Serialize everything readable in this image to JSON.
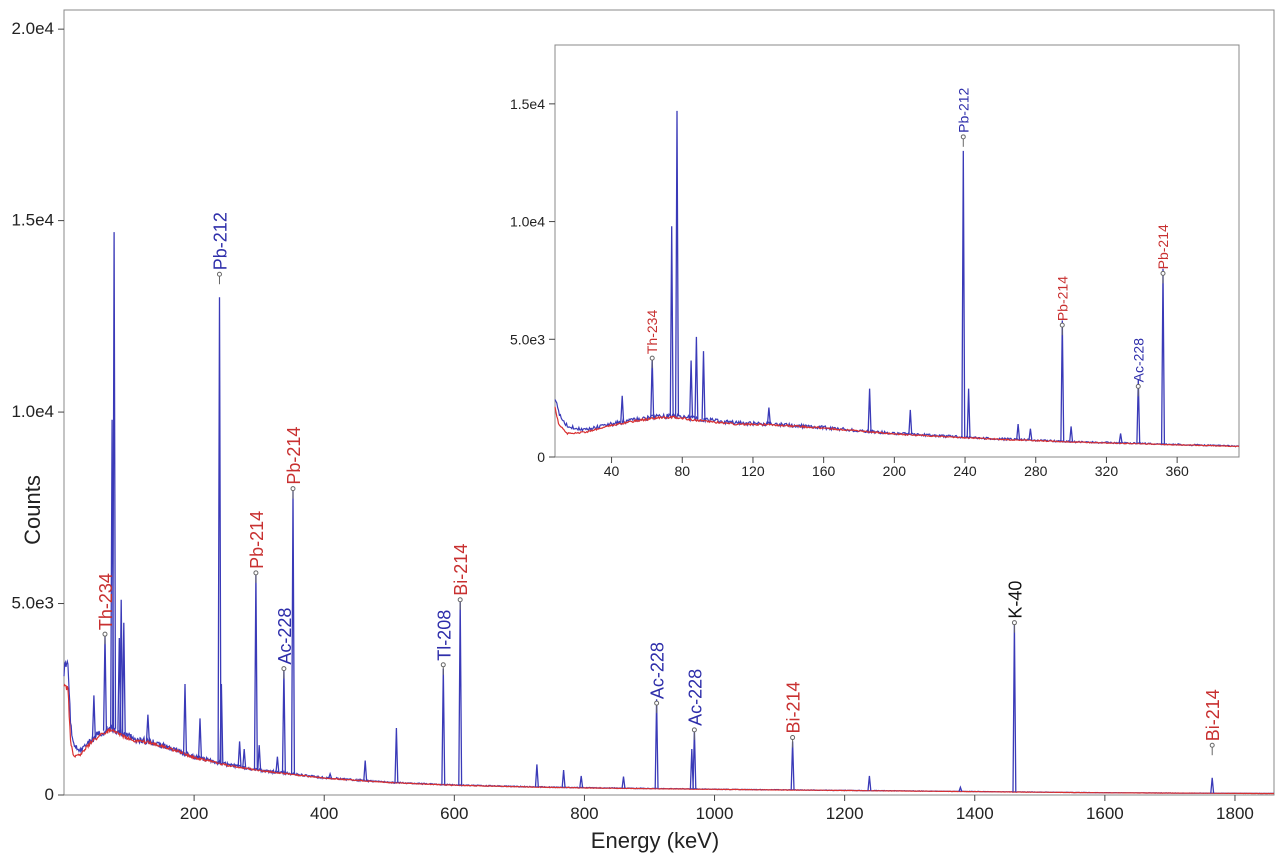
{
  "chart_data": [
    {
      "type": "line",
      "xlabel": "Energy (keV)",
      "ylabel": "Counts",
      "xlim": [
        0,
        1860
      ],
      "ylim": [
        0,
        20500
      ],
      "xticks": [
        200,
        400,
        600,
        800,
        1000,
        1200,
        1400,
        1600,
        1800
      ],
      "xtick_labels": [
        "200",
        "400",
        "600",
        "800",
        "1000",
        "1200",
        "1400",
        "1600",
        "1800"
      ],
      "yticks": [
        0,
        5000,
        10000,
        15000,
        20000
      ],
      "ytick_labels": [
        "0",
        "5.0e3",
        "1.0e4",
        "1.5e4",
        "2.0e4"
      ],
      "grid": false,
      "colors": {
        "spectrum": "#3a3ab8",
        "background": "#d83030",
        "blue_label": "#2e2eaa",
        "red_label": "#c83030",
        "black_label": "#111111"
      },
      "series": [
        {
          "role": "measured",
          "color": "#3a3ab8",
          "baseline": [
            [
              6,
              3300
            ],
            [
              10,
              1900
            ],
            [
              15,
              1300
            ],
            [
              25,
              1150
            ],
            [
              40,
              1400
            ],
            [
              55,
              1600
            ],
            [
              65,
              1700
            ],
            [
              75,
              1750
            ],
            [
              90,
              1600
            ],
            [
              110,
              1450
            ],
            [
              130,
              1400
            ],
            [
              160,
              1250
            ],
            [
              200,
              1000
            ],
            [
              250,
              800
            ],
            [
              300,
              650
            ],
            [
              350,
              550
            ],
            [
              400,
              450
            ],
            [
              500,
              330
            ],
            [
              600,
              260
            ],
            [
              700,
              220
            ],
            [
              800,
              190
            ],
            [
              900,
              170
            ],
            [
              1000,
              150
            ],
            [
              1200,
              120
            ],
            [
              1400,
              90
            ],
            [
              1600,
              60
            ],
            [
              1860,
              40
            ]
          ],
          "peaks": [
            [
              46,
              2600
            ],
            [
              63,
              4200
            ],
            [
              74,
              9800
            ],
            [
              77,
              14700
            ],
            [
              85,
              4100
            ],
            [
              88,
              5100
            ],
            [
              92,
              4500
            ],
            [
              129,
              2100
            ],
            [
              186,
              2900
            ],
            [
              209,
              2000
            ],
            [
              239,
              13000
            ],
            [
              242,
              2900
            ],
            [
              270,
              1400
            ],
            [
              277,
              1200
            ],
            [
              295,
              5800
            ],
            [
              300,
              1300
            ],
            [
              328,
              1000
            ],
            [
              338,
              3300
            ],
            [
              352,
              8000
            ],
            [
              409,
              550
            ],
            [
              463,
              900
            ],
            [
              511,
              1750
            ],
            [
              583,
              3300
            ],
            [
              609,
              5100
            ],
            [
              727,
              800
            ],
            [
              768,
              650
            ],
            [
              795,
              500
            ],
            [
              860,
              480
            ],
            [
              911,
              2500
            ],
            [
              965,
              1200
            ],
            [
              969,
              1700
            ],
            [
              1120,
              1400
            ],
            [
              1238,
              500
            ],
            [
              1378,
              200
            ],
            [
              1461,
              4500
            ],
            [
              1765,
              450
            ]
          ]
        },
        {
          "role": "background",
          "color": "#d83030",
          "baseline": [
            [
              6,
              2800
            ],
            [
              10,
              1400
            ],
            [
              15,
              1000
            ],
            [
              25,
              1050
            ],
            [
              40,
              1350
            ],
            [
              55,
              1550
            ],
            [
              65,
              1650
            ],
            [
              75,
              1700
            ],
            [
              90,
              1550
            ],
            [
              110,
              1400
            ],
            [
              130,
              1380
            ],
            [
              160,
              1230
            ],
            [
              200,
              980
            ],
            [
              250,
              780
            ],
            [
              300,
              640
            ],
            [
              350,
              540
            ],
            [
              400,
              440
            ],
            [
              500,
              325
            ],
            [
              600,
              255
            ],
            [
              700,
              215
            ],
            [
              800,
              185
            ],
            [
              900,
              165
            ],
            [
              1000,
              148
            ],
            [
              1200,
              118
            ],
            [
              1400,
              88
            ],
            [
              1600,
              58
            ],
            [
              1860,
              38
            ]
          ]
        }
      ],
      "annotations": [
        {
          "label": "Th-234",
          "x": 63,
          "y": 4200,
          "color": "#c83030"
        },
        {
          "label": "Pb-212",
          "x": 239,
          "y": 13600,
          "color": "#2e2eaa"
        },
        {
          "label": "Pb-214",
          "x": 295,
          "y": 5800,
          "color": "#c83030"
        },
        {
          "label": "Ac-228",
          "x": 338,
          "y": 3300,
          "color": "#2e2eaa"
        },
        {
          "label": "Pb-214",
          "x": 352,
          "y": 8000,
          "color": "#c83030"
        },
        {
          "label": "Tl-208",
          "x": 583,
          "y": 3400,
          "color": "#2e2eaa"
        },
        {
          "label": "Bi-214",
          "x": 609,
          "y": 5100,
          "color": "#c83030"
        },
        {
          "label": "Ac-228",
          "x": 911,
          "y": 2400,
          "color": "#2e2eaa"
        },
        {
          "label": "Ac-228",
          "x": 969,
          "y": 1700,
          "color": "#2e2eaa"
        },
        {
          "label": "Bi-214",
          "x": 1120,
          "y": 1500,
          "color": "#c83030"
        },
        {
          "label": "K-40",
          "x": 1461,
          "y": 4500,
          "color": "#111111"
        },
        {
          "label": "Bi-214",
          "x": 1765,
          "y": 1300,
          "color": "#c83030"
        }
      ]
    },
    {
      "type": "line",
      "inset": true,
      "xlim": [
        8,
        395
      ],
      "ylim": [
        0,
        17500
      ],
      "xticks": [
        40,
        80,
        120,
        160,
        200,
        240,
        280,
        320,
        360
      ],
      "xtick_labels": [
        "40",
        "80",
        "120",
        "160",
        "200",
        "240",
        "280",
        "320",
        "360"
      ],
      "yticks": [
        0,
        5000,
        10000,
        15000
      ],
      "ytick_labels": [
        "0",
        "5.0e3",
        "1.0e4",
        "1.5e4"
      ],
      "grid": false,
      "annotations": [
        {
          "label": "Th-234",
          "x": 63,
          "y": 4200,
          "color": "#c83030"
        },
        {
          "label": "Pb-212",
          "x": 239,
          "y": 13600,
          "color": "#2e2eaa"
        },
        {
          "label": "Pb-214",
          "x": 295,
          "y": 5600,
          "color": "#c83030"
        },
        {
          "label": "Ac-228",
          "x": 338,
          "y": 3000,
          "color": "#2e2eaa"
        },
        {
          "label": "Pb-214",
          "x": 352,
          "y": 7800,
          "color": "#c83030"
        }
      ]
    }
  ]
}
